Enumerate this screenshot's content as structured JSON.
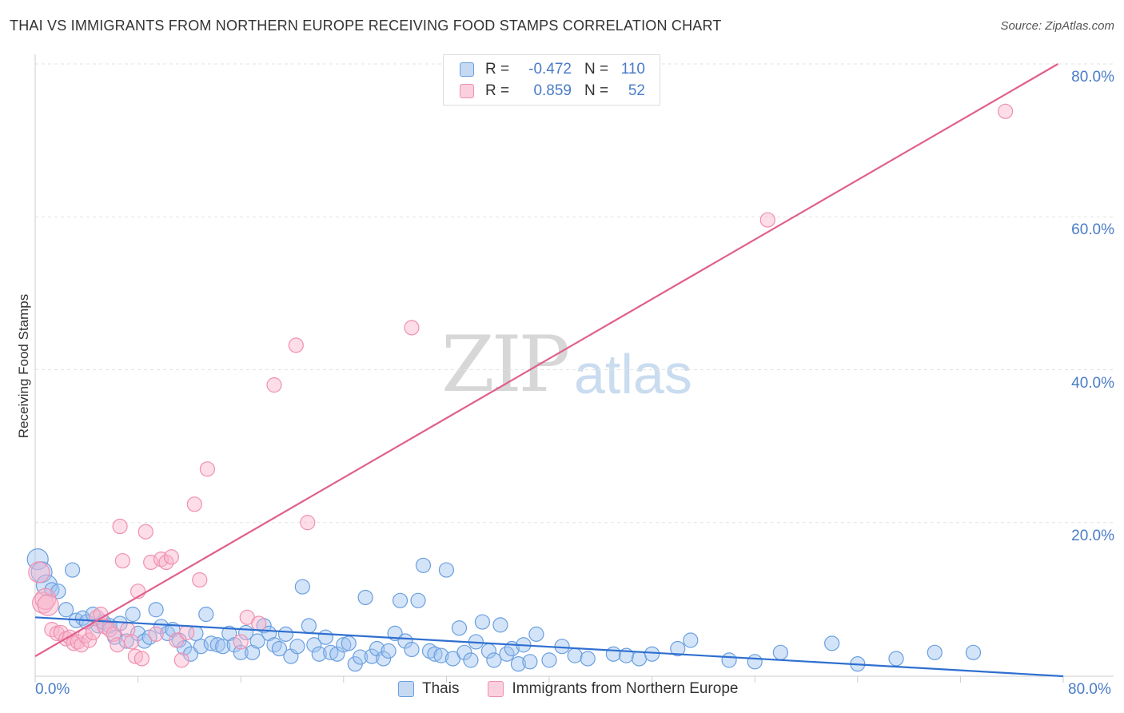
{
  "title": "THAI VS IMMIGRANTS FROM NORTHERN EUROPE RECEIVING FOOD STAMPS CORRELATION CHART",
  "source": "Source: ZipAtlas.com",
  "watermark": {
    "zip": "ZIP",
    "atlas": "atlas"
  },
  "legend": {
    "rows": [
      {
        "r_label": "R =",
        "r_value": "-0.472",
        "n_label": "N =",
        "n_value": "110"
      },
      {
        "r_label": "R =",
        "r_value": "0.859",
        "n_label": "N =",
        "n_value": "52"
      }
    ]
  },
  "chart_data": {
    "type": "scatter",
    "title": "THAI VS IMMIGRANTS FROM NORTHERN EUROPE RECEIVING FOOD STAMPS CORRELATION CHART",
    "xlabel": "",
    "ylabel": "Receiving Food Stamps",
    "xlim": [
      0,
      80
    ],
    "ylim": [
      0,
      80
    ],
    "x_tick_labels": [
      "0.0%",
      "80.0%"
    ],
    "y_tick_labels": [
      "20.0%",
      "40.0%",
      "60.0%",
      "80.0%"
    ],
    "y_ticks": [
      20,
      40,
      60,
      80
    ],
    "grid": true,
    "legend_position": "top-center",
    "colors": {
      "thais": "#6a9fe0",
      "immigrants": "#f090b0",
      "thais_line": "#2f6fd0",
      "immigrants_line": "#e0608a"
    },
    "series": [
      {
        "name": "Thais",
        "trend": {
          "x": [
            0,
            80
          ],
          "y": [
            7.6,
            -0.9
          ]
        },
        "points": [
          [
            0.2,
            15.2
          ],
          [
            0.5,
            13.5
          ],
          [
            0.9,
            11.8
          ],
          [
            1.3,
            11.2
          ],
          [
            1.8,
            11.0
          ],
          [
            2.4,
            8.6
          ],
          [
            2.9,
            13.8
          ],
          [
            3.2,
            7.2
          ],
          [
            3.7,
            7.5
          ],
          [
            4.0,
            7.0
          ],
          [
            4.5,
            8.0
          ],
          [
            4.9,
            6.5
          ],
          [
            5.3,
            7.0
          ],
          [
            5.8,
            6.5
          ],
          [
            6.2,
            5.0
          ],
          [
            6.6,
            6.8
          ],
          [
            7.1,
            4.5
          ],
          [
            7.6,
            8.0
          ],
          [
            8.0,
            5.5
          ],
          [
            8.5,
            4.5
          ],
          [
            8.9,
            5.0
          ],
          [
            9.4,
            8.6
          ],
          [
            9.8,
            6.4
          ],
          [
            10.3,
            5.5
          ],
          [
            10.7,
            6.0
          ],
          [
            11.2,
            4.6
          ],
          [
            11.6,
            3.6
          ],
          [
            12.1,
            2.8
          ],
          [
            12.5,
            5.5
          ],
          [
            12.9,
            3.8
          ],
          [
            13.3,
            8.0
          ],
          [
            13.7,
            4.2
          ],
          [
            14.2,
            4.0
          ],
          [
            14.6,
            3.8
          ],
          [
            15.1,
            5.5
          ],
          [
            15.5,
            4.0
          ],
          [
            16.0,
            3.0
          ],
          [
            16.4,
            5.6
          ],
          [
            16.9,
            3.0
          ],
          [
            17.3,
            4.5
          ],
          [
            17.8,
            6.5
          ],
          [
            18.2,
            5.5
          ],
          [
            18.6,
            4.0
          ],
          [
            19.0,
            3.5
          ],
          [
            19.5,
            5.4
          ],
          [
            19.9,
            2.5
          ],
          [
            20.4,
            3.8
          ],
          [
            20.8,
            11.6
          ],
          [
            21.3,
            6.5
          ],
          [
            21.7,
            4.0
          ],
          [
            22.1,
            2.8
          ],
          [
            22.6,
            5.0
          ],
          [
            23.0,
            3.0
          ],
          [
            23.5,
            2.8
          ],
          [
            24.0,
            4.0
          ],
          [
            24.4,
            4.2
          ],
          [
            24.9,
            1.5
          ],
          [
            25.3,
            2.4
          ],
          [
            25.7,
            10.2
          ],
          [
            26.2,
            2.5
          ],
          [
            26.6,
            3.5
          ],
          [
            27.1,
            2.2
          ],
          [
            27.5,
            3.2
          ],
          [
            28.0,
            5.5
          ],
          [
            28.4,
            9.8
          ],
          [
            28.8,
            4.5
          ],
          [
            29.3,
            3.4
          ],
          [
            29.8,
            9.8
          ],
          [
            30.2,
            14.4
          ],
          [
            30.7,
            3.2
          ],
          [
            31.1,
            2.8
          ],
          [
            31.6,
            2.6
          ],
          [
            32.0,
            13.8
          ],
          [
            32.5,
            2.2
          ],
          [
            33.0,
            6.2
          ],
          [
            33.4,
            3.0
          ],
          [
            33.9,
            2.0
          ],
          [
            34.3,
            4.4
          ],
          [
            34.8,
            7.0
          ],
          [
            35.3,
            3.2
          ],
          [
            35.7,
            2.0
          ],
          [
            36.2,
            6.6
          ],
          [
            36.7,
            2.8
          ],
          [
            37.1,
            3.5
          ],
          [
            37.6,
            1.5
          ],
          [
            38.0,
            4.0
          ],
          [
            38.5,
            1.8
          ],
          [
            39.0,
            5.4
          ],
          [
            40.0,
            2.0
          ],
          [
            41.0,
            3.8
          ],
          [
            42.0,
            2.6
          ],
          [
            43.0,
            2.2
          ],
          [
            45.0,
            2.8
          ],
          [
            46.0,
            2.6
          ],
          [
            47.0,
            2.2
          ],
          [
            48.0,
            2.8
          ],
          [
            50.0,
            3.5
          ],
          [
            51.0,
            4.6
          ],
          [
            54.0,
            2.0
          ],
          [
            56.0,
            1.8
          ],
          [
            58.0,
            3.0
          ],
          [
            62.0,
            4.2
          ],
          [
            64.0,
            1.5
          ],
          [
            67.0,
            2.2
          ],
          [
            70.0,
            3.0
          ],
          [
            73.0,
            3.0
          ]
        ]
      },
      {
        "name": "Immigrants from Northern Europe",
        "trend": {
          "x": [
            0,
            80
          ],
          "y": [
            2.5,
            80.4
          ]
        },
        "points": [
          [
            0.3,
            13.5
          ],
          [
            0.6,
            9.5
          ],
          [
            0.8,
            10.0
          ],
          [
            1.0,
            9.2
          ],
          [
            1.3,
            6.0
          ],
          [
            1.7,
            5.5
          ],
          [
            2.0,
            5.6
          ],
          [
            2.4,
            4.8
          ],
          [
            2.7,
            5.0
          ],
          [
            3.0,
            4.2
          ],
          [
            3.3,
            4.4
          ],
          [
            3.6,
            4.0
          ],
          [
            3.9,
            5.2
          ],
          [
            4.2,
            4.6
          ],
          [
            4.5,
            5.6
          ],
          [
            4.8,
            7.6
          ],
          [
            5.1,
            8.0
          ],
          [
            5.4,
            6.4
          ],
          [
            5.8,
            6.0
          ],
          [
            6.1,
            5.4
          ],
          [
            6.4,
            4.0
          ],
          [
            6.6,
            19.5
          ],
          [
            6.8,
            15.0
          ],
          [
            7.2,
            6.0
          ],
          [
            7.5,
            4.4
          ],
          [
            7.8,
            2.5
          ],
          [
            8.0,
            11.0
          ],
          [
            8.3,
            2.2
          ],
          [
            8.6,
            18.8
          ],
          [
            9.0,
            14.8
          ],
          [
            9.4,
            5.4
          ],
          [
            9.8,
            15.2
          ],
          [
            10.2,
            14.8
          ],
          [
            10.6,
            15.5
          ],
          [
            11.0,
            4.6
          ],
          [
            11.4,
            2.0
          ],
          [
            11.8,
            5.6
          ],
          [
            12.4,
            22.4
          ],
          [
            12.8,
            12.5
          ],
          [
            13.4,
            27.0
          ],
          [
            16.0,
            4.4
          ],
          [
            16.5,
            7.6
          ],
          [
            17.4,
            6.8
          ],
          [
            18.6,
            38.0
          ],
          [
            20.3,
            43.2
          ],
          [
            21.2,
            20.0
          ],
          [
            29.3,
            45.5
          ],
          [
            57.0,
            59.6
          ],
          [
            75.5,
            73.8
          ]
        ]
      }
    ]
  }
}
